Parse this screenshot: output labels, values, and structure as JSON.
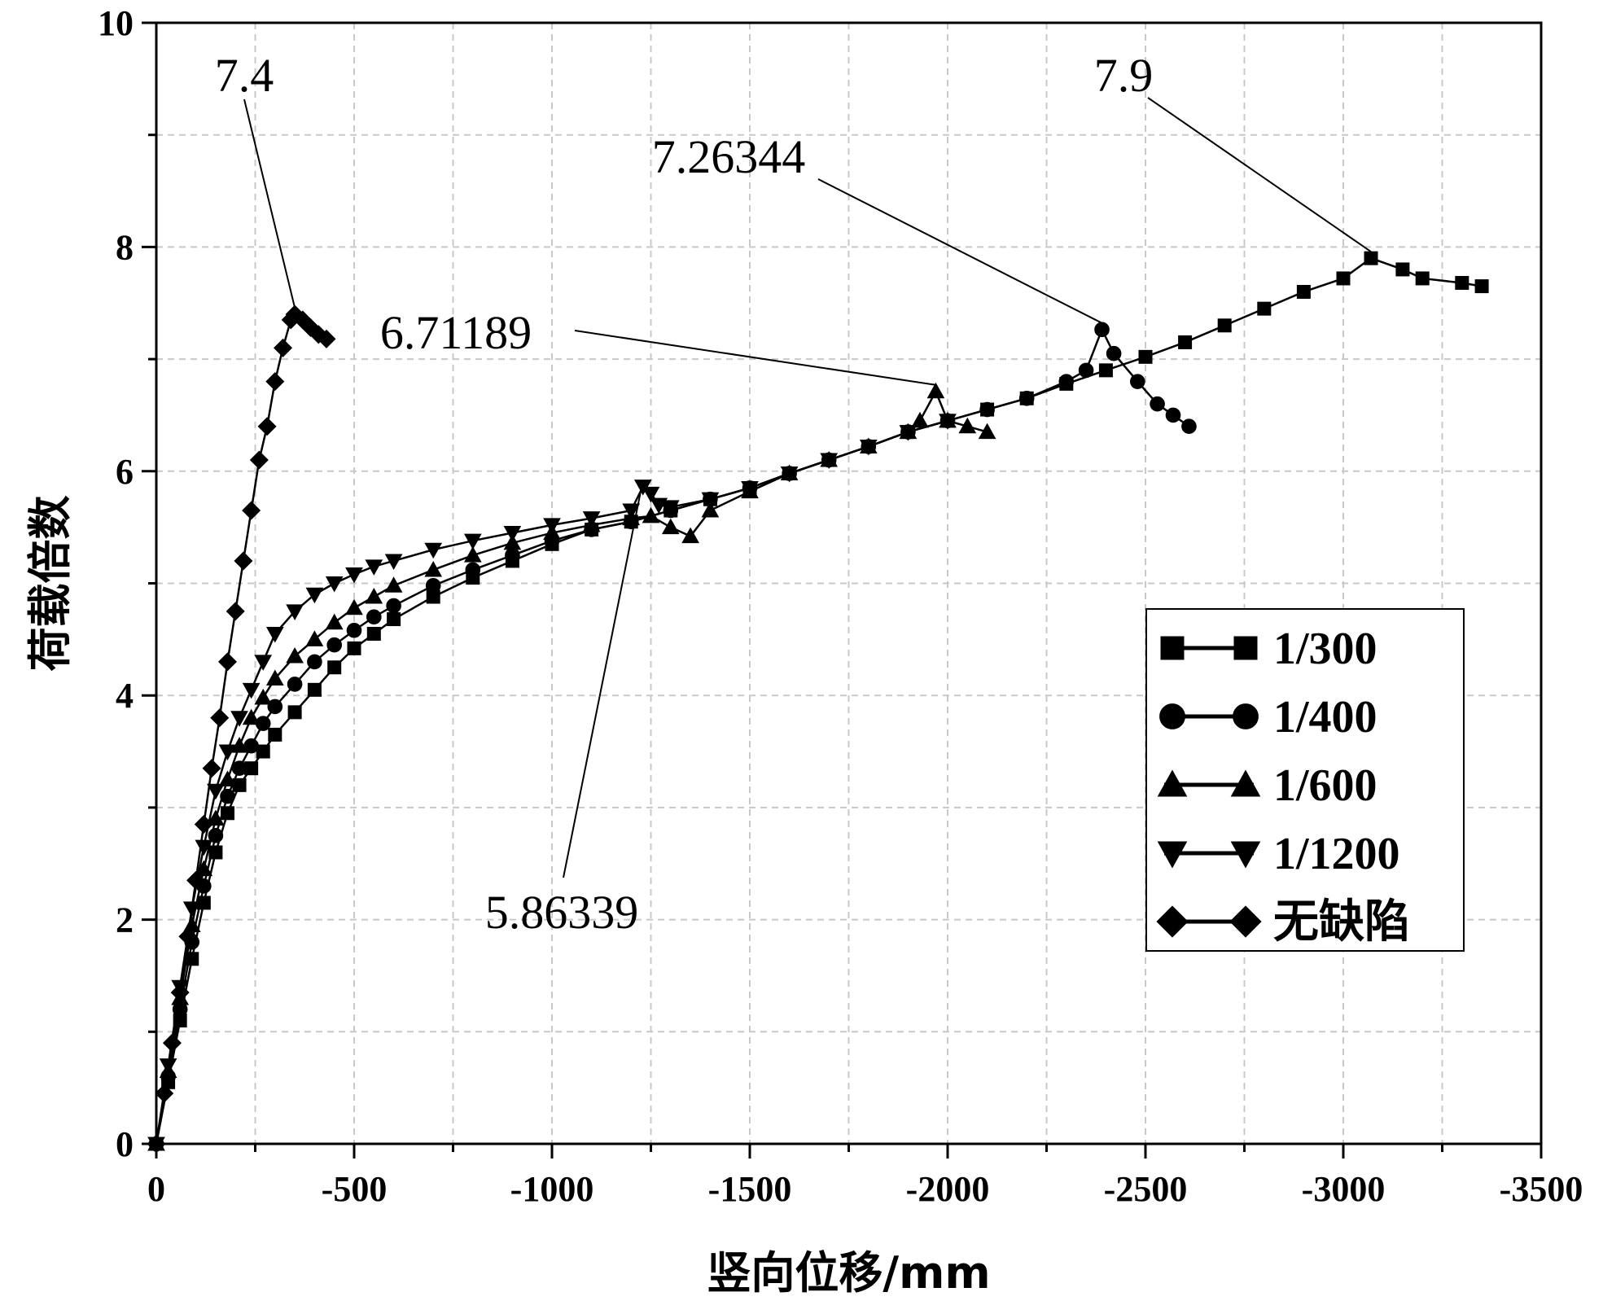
{
  "chart_data": {
    "type": "line",
    "title": "",
    "xlabel": "竖向位移/mm",
    "ylabel": "荷载倍数",
    "xlim": [
      0,
      -3500
    ],
    "ylim": [
      0,
      10
    ],
    "xticks": [
      0,
      -500,
      -1000,
      -1500,
      -2000,
      -2500,
      -3000,
      -3500
    ],
    "yticks": [
      0,
      2,
      4,
      6,
      8,
      10
    ],
    "grid": true,
    "legend_position": "right",
    "series": [
      {
        "name": "1/300",
        "marker": "square",
        "x": [
          0,
          -30,
          -60,
          -90,
          -120,
          -150,
          -180,
          -210,
          -240,
          -270,
          -300,
          -350,
          -400,
          -450,
          -500,
          -550,
          -600,
          -700,
          -800,
          -900,
          -1000,
          -1100,
          -1200,
          -1300,
          -1400,
          -1500,
          -1600,
          -1700,
          -1800,
          -1900,
          -2000,
          -2100,
          -2200,
          -2300,
          -2400,
          -2500,
          -2600,
          -2700,
          -2800,
          -2900,
          -3000,
          -3070,
          -3150,
          -3200,
          -3300,
          -3350
        ],
        "y": [
          0,
          0.55,
          1.1,
          1.65,
          2.15,
          2.6,
          2.95,
          3.2,
          3.35,
          3.5,
          3.65,
          3.85,
          4.05,
          4.25,
          4.42,
          4.55,
          4.68,
          4.88,
          5.05,
          5.2,
          5.35,
          5.48,
          5.55,
          5.65,
          5.75,
          5.85,
          5.98,
          6.1,
          6.22,
          6.35,
          6.45,
          6.55,
          6.65,
          6.78,
          6.9,
          7.02,
          7.15,
          7.3,
          7.45,
          7.6,
          7.72,
          7.9,
          7.8,
          7.72,
          7.68,
          7.65
        ]
      },
      {
        "name": "1/400",
        "marker": "circle",
        "x": [
          0,
          -30,
          -60,
          -90,
          -120,
          -150,
          -180,
          -210,
          -240,
          -270,
          -300,
          -350,
          -400,
          -450,
          -500,
          -550,
          -600,
          -700,
          -800,
          -900,
          -1000,
          -1100,
          -1200,
          -1300,
          -1400,
          -1500,
          -1600,
          -1700,
          -1800,
          -1900,
          -2000,
          -2100,
          -2200,
          -2300,
          -2350,
          -2390,
          -2420,
          -2480,
          -2530,
          -2570,
          -2610
        ],
        "y": [
          0,
          0.6,
          1.2,
          1.8,
          2.3,
          2.75,
          3.1,
          3.35,
          3.55,
          3.75,
          3.9,
          4.1,
          4.3,
          4.45,
          4.58,
          4.7,
          4.8,
          4.98,
          5.12,
          5.25,
          5.38,
          5.48,
          5.55,
          5.65,
          5.75,
          5.85,
          5.98,
          6.1,
          6.22,
          6.35,
          6.45,
          6.55,
          6.65,
          6.8,
          6.9,
          7.26344,
          7.05,
          6.8,
          6.6,
          6.5,
          6.4
        ]
      },
      {
        "name": "1/600",
        "marker": "triangle-up",
        "x": [
          0,
          -30,
          -60,
          -90,
          -120,
          -150,
          -180,
          -210,
          -240,
          -270,
          -300,
          -350,
          -400,
          -450,
          -500,
          -550,
          -600,
          -700,
          -800,
          -900,
          -1000,
          -1100,
          -1200,
          -1250,
          -1300,
          -1350,
          -1400,
          -1500,
          -1600,
          -1700,
          -1800,
          -1900,
          -1930,
          -1970,
          -2000,
          -2050,
          -2100
        ],
        "y": [
          0,
          0.65,
          1.3,
          1.95,
          2.45,
          2.9,
          3.25,
          3.55,
          3.8,
          3.98,
          4.15,
          4.35,
          4.5,
          4.65,
          4.78,
          4.88,
          4.98,
          5.12,
          5.25,
          5.36,
          5.45,
          5.52,
          5.58,
          5.6,
          5.5,
          5.42,
          5.65,
          5.82,
          5.98,
          6.1,
          6.22,
          6.35,
          6.45,
          6.71189,
          6.45,
          6.4,
          6.35
        ]
      },
      {
        "name": "1/1200",
        "marker": "triangle-down",
        "x": [
          0,
          -30,
          -60,
          -90,
          -120,
          -150,
          -180,
          -210,
          -240,
          -270,
          -300,
          -350,
          -400,
          -450,
          -500,
          -550,
          -600,
          -700,
          -800,
          -900,
          -1000,
          -1100,
          -1200,
          -1230,
          -1250,
          -1270,
          -1300,
          -1400,
          -1500,
          -1600,
          -1700,
          -1800,
          -1900,
          -2000
        ],
        "y": [
          0,
          0.7,
          1.4,
          2.1,
          2.65,
          3.15,
          3.5,
          3.8,
          4.05,
          4.3,
          4.55,
          4.75,
          4.9,
          5.0,
          5.08,
          5.15,
          5.2,
          5.3,
          5.38,
          5.45,
          5.52,
          5.58,
          5.65,
          5.86339,
          5.8,
          5.7,
          5.68,
          5.75,
          5.85,
          5.98,
          6.1,
          6.22,
          6.35,
          6.45
        ]
      },
      {
        "name": "无缺陷",
        "marker": "diamond",
        "x": [
          0,
          -20,
          -40,
          -60,
          -80,
          -100,
          -120,
          -140,
          -160,
          -180,
          -200,
          -220,
          -240,
          -260,
          -280,
          -300,
          -320,
          -340,
          -350,
          -370,
          -390,
          -410,
          -430
        ],
        "y": [
          0,
          0.45,
          0.9,
          1.35,
          1.85,
          2.35,
          2.85,
          3.35,
          3.8,
          4.3,
          4.75,
          5.2,
          5.65,
          6.1,
          6.4,
          6.8,
          7.1,
          7.35,
          7.4,
          7.35,
          7.28,
          7.22,
          7.18
        ]
      }
    ],
    "annotations": [
      {
        "text": "7.4",
        "x": -350,
        "y": 7.4
      },
      {
        "text": "6.71189",
        "x": -1970,
        "y": 6.71189
      },
      {
        "text": "7.26344",
        "x": -2390,
        "y": 7.26344
      },
      {
        "text": "7.9",
        "x": -3070,
        "y": 7.9
      },
      {
        "text": "5.86339",
        "x": -1230,
        "y": 5.86339
      }
    ]
  }
}
